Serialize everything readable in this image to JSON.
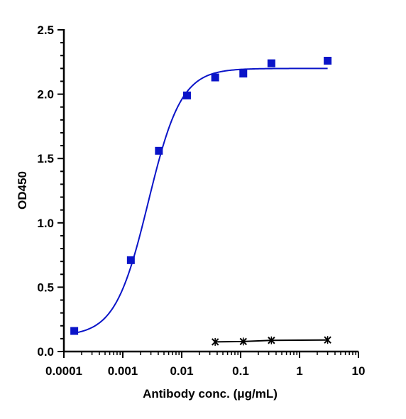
{
  "chart_data": {
    "type": "scatter",
    "xlabel": "Antibody conc. (μg/mL)",
    "ylabel": "OD450",
    "x_scale": "log",
    "xlim": [
      0.0001,
      10
    ],
    "ylim": [
      0,
      2.5
    ],
    "x_ticks": [
      "0.0001",
      "0.001",
      "0.01",
      "0.1",
      "1",
      "10"
    ],
    "y_ticks": [
      "0.0",
      "0.5",
      "1.0",
      "1.5",
      "2.0",
      "2.5"
    ],
    "grid": false,
    "legend": "none",
    "series": [
      {
        "marker": "square",
        "color": "#0a14c8",
        "fit": "4PL",
        "x": [
          0.00015,
          0.00137,
          0.0041,
          0.0123,
          0.037,
          0.111,
          0.333,
          3.0
        ],
        "y": [
          0.16,
          0.71,
          1.56,
          1.99,
          2.13,
          2.16,
          2.24,
          2.26
        ],
        "fit_params": {
          "bottom": 0.12,
          "top": 2.2,
          "ec50": 0.0027,
          "hill": 1.55
        }
      },
      {
        "marker": "x",
        "color": "#000000",
        "fit": "line",
        "x": [
          0.037,
          0.111,
          0.333,
          3.0
        ],
        "y": [
          0.075,
          0.078,
          0.087,
          0.09
        ]
      }
    ]
  }
}
